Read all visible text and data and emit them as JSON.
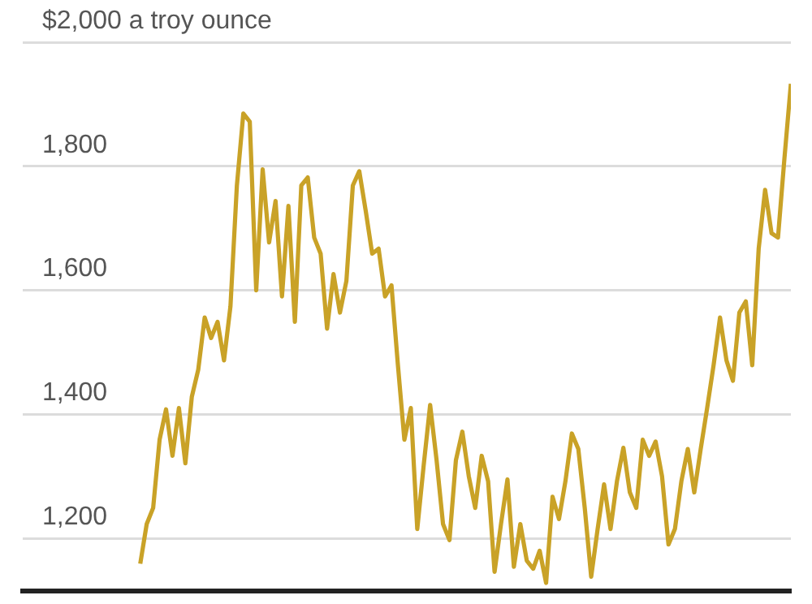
{
  "chart_data": {
    "type": "line",
    "categories": [
      null,
      null,
      null,
      null,
      null,
      null,
      null,
      null,
      null,
      null,
      null,
      null,
      null,
      null,
      null,
      null,
      null,
      null,
      null,
      null,
      null,
      null,
      null,
      null,
      null,
      null,
      null,
      null,
      null,
      null,
      null,
      null,
      null,
      null,
      null,
      null,
      null,
      null,
      null,
      null,
      null,
      null,
      null,
      null,
      null,
      null,
      null,
      null,
      null,
      null,
      null,
      null,
      null,
      null,
      null,
      null,
      null,
      null,
      null,
      null,
      null,
      null,
      null,
      null,
      null,
      null,
      null,
      null,
      null,
      null,
      null,
      null,
      null,
      null,
      null,
      null,
      null,
      null,
      null,
      null,
      null,
      null,
      null,
      null,
      null,
      null,
      null,
      null,
      null,
      null,
      null,
      null,
      null,
      null,
      null,
      null,
      null,
      null,
      null,
      null,
      null,
      null
    ],
    "series": [
      {
        "color": "#c9a227",
        "values": [
          1159,
          1223,
          1249,
          1359,
          1408,
          1333,
          1410,
          1321,
          1428,
          1472,
          1556,
          1523,
          1549,
          1487,
          1574,
          1769,
          1885,
          1872,
          1600,
          1795,
          1677,
          1744,
          1590,
          1736,
          1549,
          1769,
          1782,
          1685,
          1659,
          1538,
          1626,
          1564,
          1615,
          1769,
          1792,
          1728,
          1659,
          1667,
          1590,
          1608,
          1479,
          1359,
          1410,
          1215,
          1318,
          1415,
          1326,
          1223,
          1197,
          1326,
          1372,
          1300,
          1249,
          1333,
          1292,
          1146,
          1223,
          1295,
          1154,
          1223,
          1164,
          1151,
          1180,
          1128,
          1267,
          1231,
          1292,
          1369,
          1344,
          1249,
          1138,
          1215,
          1287,
          1215,
          1292,
          1346,
          1274,
          1249,
          1359,
          1333,
          1356,
          1300,
          1190,
          1215,
          1292,
          1344,
          1274,
          1344,
          1410,
          1479,
          1556,
          1487,
          1454,
          1564,
          1582,
          1479,
          1667,
          1762,
          1692,
          1685,
          1813,
          1933
        ]
      }
    ],
    "ylim": [
      1115,
      2000
    ],
    "yticks": [
      {
        "value": 1200,
        "label": "1,200"
      },
      {
        "value": 1400,
        "label": "1,400"
      },
      {
        "value": 1600,
        "label": "1,600"
      },
      {
        "value": 1800,
        "label": "1,800"
      },
      {
        "value": 2000,
        "label": "$2,000 a troy ounce"
      }
    ],
    "grid": "y",
    "legend": false,
    "marker": "none",
    "line_style": "solid",
    "tick_labels": "y"
  }
}
